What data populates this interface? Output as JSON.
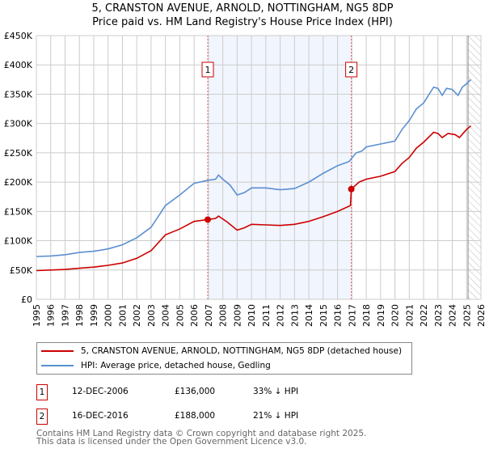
{
  "title": "5, CRANSTON AVENUE, ARNOLD, NOTTINGHAM, NG5 8DP",
  "subtitle": "Price paid vs. HM Land Registry's House Price Index (HPI)",
  "chart_data": {
    "type": "line",
    "title": "5, CRANSTON AVENUE, ARNOLD, NOTTINGHAM, NG5 8DP",
    "subtitle": "Price paid vs. HM Land Registry's House Price Index (HPI)",
    "xlim": [
      1995,
      2026
    ],
    "ylim": [
      0,
      450000
    ],
    "x_ticks": [
      "1995",
      "1996",
      "1997",
      "1998",
      "1999",
      "2000",
      "2001",
      "2002",
      "2003",
      "2004",
      "2005",
      "2006",
      "2007",
      "2008",
      "2009",
      "2010",
      "2011",
      "2012",
      "2013",
      "2014",
      "2015",
      "2016",
      "2017",
      "2018",
      "2019",
      "2020",
      "2021",
      "2022",
      "2023",
      "2024",
      "2025",
      "2026"
    ],
    "y_ticks": [
      "£0",
      "£50K",
      "£100K",
      "£150K",
      "£200K",
      "£250K",
      "£300K",
      "£350K",
      "£400K",
      "£450K"
    ],
    "grid": true,
    "series": [
      {
        "name": "5, CRANSTON AVENUE, ARNOLD, NOTTINGHAM, NG5 8DP (detached house)",
        "color": "#cc0000",
        "points": [
          [
            1995,
            49000
          ],
          [
            1996,
            50000
          ],
          [
            1997,
            51000
          ],
          [
            1998,
            53000
          ],
          [
            1999,
            55000
          ],
          [
            2000,
            58000
          ],
          [
            2001,
            62000
          ],
          [
            2002,
            70000
          ],
          [
            2003,
            83000
          ],
          [
            2004,
            110000
          ],
          [
            2005,
            120000
          ],
          [
            2006,
            133000
          ],
          [
            2006.95,
            136000
          ],
          [
            2007.5,
            138000
          ],
          [
            2007.7,
            142000
          ],
          [
            2008.3,
            132000
          ],
          [
            2009,
            118000
          ],
          [
            2009.5,
            122000
          ],
          [
            2010,
            128000
          ],
          [
            2011,
            127000
          ],
          [
            2012,
            126000
          ],
          [
            2013,
            128000
          ],
          [
            2014,
            133000
          ],
          [
            2015,
            141000
          ],
          [
            2016,
            150000
          ],
          [
            2016.9,
            160000
          ],
          [
            2016.96,
            188000
          ],
          [
            2017.5,
            200000
          ],
          [
            2018,
            205000
          ],
          [
            2019,
            210000
          ],
          [
            2020,
            218000
          ],
          [
            2020.5,
            232000
          ],
          [
            2021,
            242000
          ],
          [
            2021.5,
            258000
          ],
          [
            2022,
            268000
          ],
          [
            2022.7,
            285000
          ],
          [
            2023,
            283000
          ],
          [
            2023.3,
            276000
          ],
          [
            2023.7,
            283000
          ],
          [
            2024.2,
            281000
          ],
          [
            2024.5,
            276000
          ],
          [
            2025,
            290000
          ],
          [
            2025.3,
            296000
          ]
        ]
      },
      {
        "name": "HPI: Average price, detached house, Gedling",
        "color": "#5b8fd0",
        "points": [
          [
            1995,
            73000
          ],
          [
            1996,
            74000
          ],
          [
            1997,
            76000
          ],
          [
            1998,
            80000
          ],
          [
            1999,
            82000
          ],
          [
            2000,
            86000
          ],
          [
            2001,
            93000
          ],
          [
            2002,
            105000
          ],
          [
            2003,
            123000
          ],
          [
            2004,
            160000
          ],
          [
            2005,
            178000
          ],
          [
            2006,
            198000
          ],
          [
            2006.95,
            203000
          ],
          [
            2007.5,
            205000
          ],
          [
            2007.7,
            212000
          ],
          [
            2008,
            205000
          ],
          [
            2008.5,
            195000
          ],
          [
            2009,
            178000
          ],
          [
            2009.5,
            182000
          ],
          [
            2010,
            190000
          ],
          [
            2011,
            190000
          ],
          [
            2012,
            187000
          ],
          [
            2013,
            189000
          ],
          [
            2014,
            200000
          ],
          [
            2015,
            215000
          ],
          [
            2016,
            228000
          ],
          [
            2016.8,
            235000
          ],
          [
            2017.3,
            250000
          ],
          [
            2017.7,
            253000
          ],
          [
            2018,
            260000
          ],
          [
            2019,
            265000
          ],
          [
            2020,
            270000
          ],
          [
            2020.5,
            290000
          ],
          [
            2021,
            305000
          ],
          [
            2021.5,
            325000
          ],
          [
            2022,
            335000
          ],
          [
            2022.7,
            362000
          ],
          [
            2023,
            360000
          ],
          [
            2023.3,
            348000
          ],
          [
            2023.6,
            360000
          ],
          [
            2024,
            358000
          ],
          [
            2024.4,
            348000
          ],
          [
            2024.7,
            362000
          ],
          [
            2025,
            368000
          ],
          [
            2025.3,
            375000
          ]
        ]
      }
    ],
    "sales": [
      {
        "label": "1",
        "x": 2006.95,
        "value": 136000
      },
      {
        "label": "2",
        "x": 2016.96,
        "value": 188000
      }
    ],
    "shaded_range": [
      2006.95,
      2016.96
    ],
    "forecast_hatch_from": 2025.1
  },
  "legend": {
    "items": [
      {
        "label": "5, CRANSTON AVENUE, ARNOLD, NOTTINGHAM, NG5 8DP (detached house)",
        "color": "#cc0000"
      },
      {
        "label": "HPI: Average price, detached house, Gedling",
        "color": "#5b8fd0"
      }
    ]
  },
  "transactions": [
    {
      "num": "1",
      "date": "12-DEC-2006",
      "price": "£136,000",
      "diff": "33% ↓ HPI"
    },
    {
      "num": "2",
      "date": "16-DEC-2016",
      "price": "£188,000",
      "diff": "21% ↓ HPI"
    }
  ],
  "footer": {
    "line1": "Contains HM Land Registry data © Crown copyright and database right 2025.",
    "line2": "This data is licensed under the Open Government Licence v3.0."
  }
}
